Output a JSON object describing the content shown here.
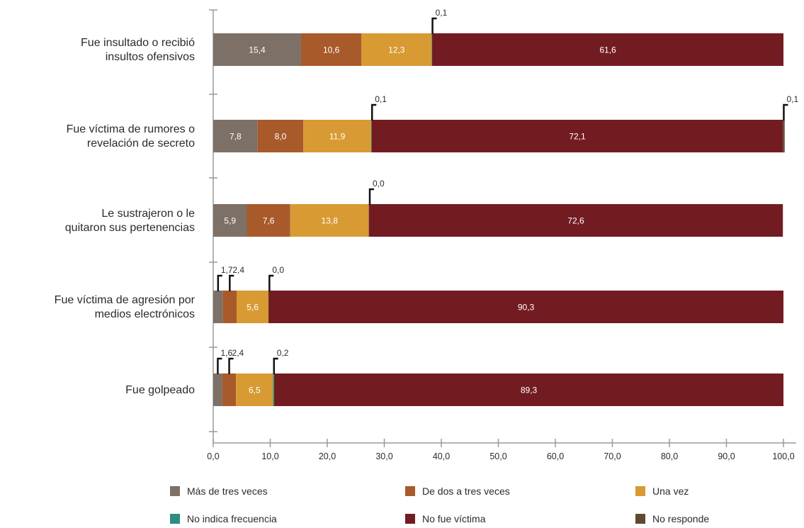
{
  "chart_data": {
    "type": "bar",
    "orientation": "horizontal",
    "stacked": true,
    "title": "",
    "xlabel": "",
    "ylabel": "",
    "xlim": [
      0,
      100
    ],
    "x_ticks": [
      "0,0",
      "10,0",
      "20,0",
      "30,0",
      "40,0",
      "50,0",
      "60,0",
      "70,0",
      "80,0",
      "90,0",
      "100,0"
    ],
    "grid": false,
    "legend_position": "bottom",
    "categories": [
      [
        "Fue insultado o recibió",
        "insultos ofensivos"
      ],
      [
        "Fue víctima de rumores o",
        "revelación de secreto"
      ],
      [
        "Le sustrajeron o le",
        "quitaron sus pertenencias"
      ],
      [
        "Fue víctima de agresión por",
        "medios electrónicos"
      ],
      [
        "Fue golpeado"
      ]
    ],
    "series": [
      {
        "name": "Más de tres veces",
        "color": "#7d7066",
        "values": [
          15.4,
          7.8,
          5.9,
          1.7,
          1.6
        ],
        "labels": [
          "15,4",
          "7,8",
          "5,9",
          "1,7",
          "1,6"
        ]
      },
      {
        "name": "De dos a tres veces",
        "color": "#a85a2a",
        "values": [
          10.6,
          8.0,
          7.6,
          2.4,
          2.4
        ],
        "labels": [
          "10,6",
          "8,0",
          "7,6",
          "2,4",
          "2,4"
        ]
      },
      {
        "name": "Una vez",
        "color": "#d89a32",
        "values": [
          12.3,
          11.9,
          13.8,
          5.6,
          6.5
        ],
        "labels": [
          "12,3",
          "11,9",
          "13,8",
          "5,6",
          "6,5"
        ]
      },
      {
        "name": "No indica frecuencia",
        "color": "#2f8c80",
        "values": [
          0.1,
          0.1,
          0.0,
          0.0,
          0.2
        ],
        "labels": [
          "0,1",
          "0,1",
          "0,0",
          "0,0",
          "0,2"
        ]
      },
      {
        "name": "No fue víctima",
        "color": "#721c22",
        "values": [
          61.6,
          72.1,
          72.6,
          90.3,
          89.3
        ],
        "labels": [
          "61,6",
          "72,1",
          "72,6",
          "90,3",
          "89,3"
        ]
      },
      {
        "name": "No responde",
        "color": "#5e4a30",
        "values": [
          0,
          0.1,
          0,
          0,
          0
        ],
        "labels": [
          "",
          "0,1",
          "",
          "",
          ""
        ]
      }
    ]
  }
}
